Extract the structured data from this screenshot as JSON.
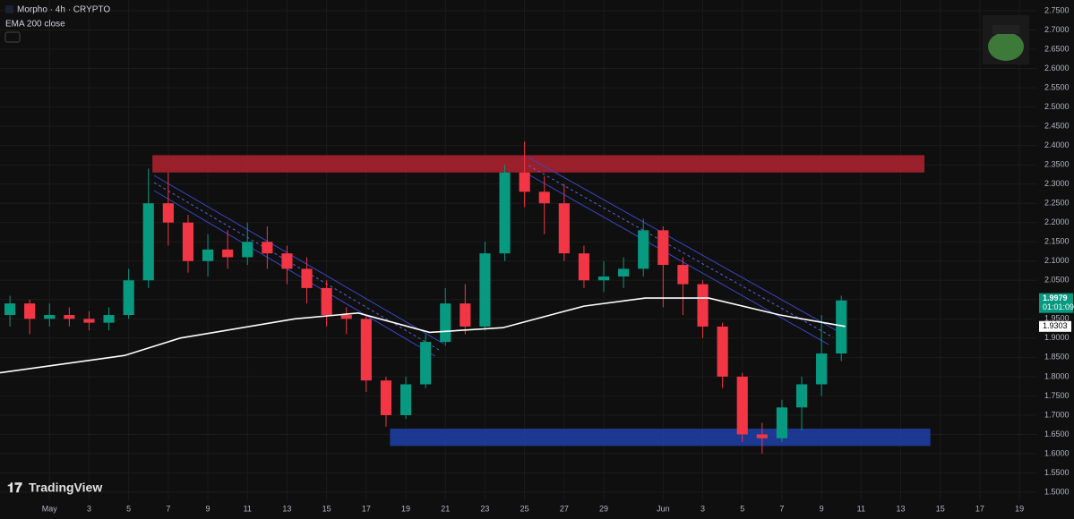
{
  "chart_data": {
    "type": "candlestick",
    "title": "Morpho · 4h · CRYPTO",
    "indicator": "EMA 200 close",
    "brand": "TradingView",
    "up_color": "#089981",
    "down_color": "#f23645",
    "x": [
      -2,
      -1,
      0,
      1,
      2,
      3,
      4,
      5,
      6,
      7,
      8,
      9,
      10,
      11,
      12,
      13,
      14,
      15,
      16,
      17,
      18,
      19,
      20,
      21,
      22,
      23,
      24,
      25,
      26,
      27,
      28,
      29,
      30,
      31,
      32,
      33,
      34,
      35,
      36,
      37,
      38,
      39,
      40
    ],
    "open": [
      1.96,
      1.99,
      1.95,
      1.96,
      1.95,
      1.94,
      1.96,
      2.05,
      2.25,
      2.2,
      2.1,
      2.13,
      2.11,
      2.15,
      2.12,
      2.08,
      2.03,
      1.96,
      1.95,
      1.79,
      1.7,
      1.78,
      1.89,
      1.99,
      1.93,
      2.12,
      2.33,
      2.28,
      2.25,
      2.12,
      2.05,
      2.06,
      2.08,
      2.18,
      2.09,
      2.04,
      1.93,
      1.8,
      1.65,
      1.64,
      1.72,
      1.78,
      1.86
    ],
    "high": [
      2.01,
      2.0,
      1.99,
      1.98,
      1.97,
      1.98,
      2.08,
      2.34,
      2.33,
      2.22,
      2.17,
      2.18,
      2.2,
      2.19,
      2.14,
      2.11,
      2.05,
      1.98,
      1.96,
      1.8,
      1.8,
      1.91,
      2.03,
      2.04,
      2.15,
      2.35,
      2.41,
      2.32,
      2.3,
      2.14,
      2.1,
      2.11,
      2.21,
      2.19,
      2.11,
      2.05,
      1.94,
      1.81,
      1.68,
      1.74,
      1.8,
      1.96,
      2.01
    ],
    "low": [
      1.93,
      1.91,
      1.93,
      1.93,
      1.92,
      1.92,
      1.95,
      2.03,
      2.14,
      2.07,
      2.06,
      2.08,
      2.09,
      2.08,
      2.04,
      1.99,
      1.93,
      1.91,
      1.76,
      1.67,
      1.69,
      1.77,
      1.88,
      1.91,
      1.92,
      2.1,
      2.24,
      2.17,
      2.1,
      2.03,
      2.02,
      2.03,
      2.06,
      1.98,
      1.96,
      1.9,
      1.77,
      1.63,
      1.6,
      1.63,
      1.66,
      1.75,
      1.84
    ],
    "close": [
      1.99,
      1.95,
      1.96,
      1.95,
      1.94,
      1.96,
      2.05,
      2.25,
      2.2,
      2.1,
      2.13,
      2.11,
      2.15,
      2.12,
      2.08,
      2.03,
      1.96,
      1.95,
      1.79,
      1.7,
      1.78,
      1.89,
      1.99,
      1.93,
      2.12,
      2.33,
      2.28,
      2.25,
      2.12,
      2.05,
      2.06,
      2.08,
      2.18,
      2.09,
      2.04,
      1.93,
      1.8,
      1.65,
      1.64,
      1.72,
      1.78,
      1.86,
      1.9979
    ],
    "ema": {
      "color": "#ffffff",
      "x": [
        -2.5,
        1,
        3.8,
        6.6,
        12.4,
        15.6,
        19.2,
        22.9,
        27,
        30.1,
        33.3,
        36.9,
        40.2
      ],
      "values": [
        1.81,
        1.835,
        1.855,
        1.9,
        1.95,
        1.965,
        1.915,
        1.927,
        1.983,
        2.004,
        2.004,
        1.96,
        1.9303
      ]
    },
    "zones": [
      {
        "color": "#b2222f",
        "x": [
          5.2,
          44.2
        ],
        "y": [
          2.33,
          2.375
        ]
      },
      {
        "color": "#1e3fa8",
        "x": [
          17.2,
          44.5
        ],
        "y": [
          1.62,
          1.665
        ]
      }
    ],
    "last_price": 1.9979,
    "countdown": "01:01:09",
    "ema_last": 1.9303,
    "xlim": [
      -2.5,
      49.9
    ],
    "ylim": [
      1.5,
      2.75
    ],
    "xticks": [
      {
        "value": 0,
        "label": "May"
      },
      {
        "value": 2,
        "label": "3"
      },
      {
        "value": 4,
        "label": "5"
      },
      {
        "value": 6,
        "label": "7"
      },
      {
        "value": 8,
        "label": "9"
      },
      {
        "value": 10,
        "label": "11"
      },
      {
        "value": 12,
        "label": "13"
      },
      {
        "value": 14,
        "label": "15"
      },
      {
        "value": 16,
        "label": "17"
      },
      {
        "value": 18,
        "label": "19"
      },
      {
        "value": 20,
        "label": "21"
      },
      {
        "value": 22,
        "label": "23"
      },
      {
        "value": 24,
        "label": "25"
      },
      {
        "value": 26,
        "label": "27"
      },
      {
        "value": 28,
        "label": "29"
      },
      {
        "value": 31,
        "label": "Jun"
      },
      {
        "value": 33,
        "label": "3"
      },
      {
        "value": 35,
        "label": "5"
      },
      {
        "value": 37,
        "label": "7"
      },
      {
        "value": 39,
        "label": "9"
      },
      {
        "value": 41,
        "label": "11"
      },
      {
        "value": 43,
        "label": "13"
      },
      {
        "value": 45,
        "label": "15"
      },
      {
        "value": 47,
        "label": "17"
      },
      {
        "value": 49,
        "label": "19"
      }
    ],
    "yticks": [
      {
        "value": 1.5,
        "label": "1.5000"
      },
      {
        "value": 1.55,
        "label": "1.5500"
      },
      {
        "value": 1.6,
        "label": "1.6000"
      },
      {
        "value": 1.65,
        "label": "1.6500"
      },
      {
        "value": 1.7,
        "label": "1.7000"
      },
      {
        "value": 1.75,
        "label": "1.7500"
      },
      {
        "value": 1.8,
        "label": "1.8000"
      },
      {
        "value": 1.85,
        "label": "1.8500"
      },
      {
        "value": 1.9,
        "label": "1.9000"
      },
      {
        "value": 1.95,
        "label": "1.9500"
      },
      {
        "value": 2.0,
        "label": "2.0000"
      },
      {
        "value": 2.05,
        "label": "2.0500"
      },
      {
        "value": 2.1,
        "label": "2.1000"
      },
      {
        "value": 2.15,
        "label": "2.1500"
      },
      {
        "value": 2.2,
        "label": "2.2000"
      },
      {
        "value": 2.25,
        "label": "2.2500"
      },
      {
        "value": 2.3,
        "label": "2.3000"
      },
      {
        "value": 2.35,
        "label": "2.3500"
      },
      {
        "value": 2.4,
        "label": "2.4000"
      },
      {
        "value": 2.45,
        "label": "2.4500"
      },
      {
        "value": 2.5,
        "label": "2.5000"
      },
      {
        "value": 2.55,
        "label": "2.5500"
      },
      {
        "value": 2.6,
        "label": "2.6000"
      },
      {
        "value": 2.65,
        "label": "2.6500"
      },
      {
        "value": 2.7,
        "label": "2.7000"
      },
      {
        "value": 2.75,
        "label": "2.7500"
      }
    ],
    "grid": true
  }
}
